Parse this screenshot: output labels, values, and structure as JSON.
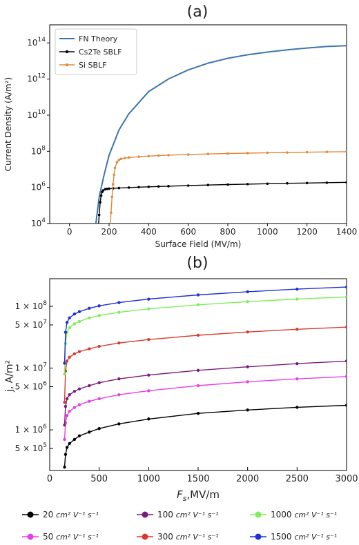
{
  "chart_data": [
    {
      "type": "line",
      "panel_label": "(a)",
      "xlabel": "Surface Field (MV/m)",
      "ylabel": "Current Density (A/m²)",
      "xlim": [
        -100,
        1400
      ],
      "ylim": [
        10000,
        1000000000000000
      ],
      "yscale": "log",
      "xticks": [
        0,
        200,
        400,
        600,
        800,
        1000,
        1200,
        1400
      ],
      "yticks": [
        {
          "value": 10000,
          "base": "10",
          "exp": "4"
        },
        {
          "value": 1000000,
          "base": "10",
          "exp": "6"
        },
        {
          "value": 100000000,
          "base": "10",
          "exp": "8"
        },
        {
          "value": 10000000000,
          "base": "10",
          "exp": "10"
        },
        {
          "value": 1000000000000,
          "base": "10",
          "exp": "12"
        },
        {
          "value": 100000000000000,
          "base": "10",
          "exp": "14"
        }
      ],
      "legend": "top-left",
      "grid": false,
      "series": [
        {
          "name": "FN Theory",
          "color": "#3a75b0",
          "marker": "none",
          "x": [
            130,
            150,
            175,
            200,
            250,
            300,
            400,
            500,
            600,
            700,
            800,
            900,
            1000,
            1100,
            1200,
            1300,
            1400
          ],
          "y": [
            5000,
            300000,
            5000000,
            60000000,
            1500000000,
            12000000000,
            200000000000,
            1000000000000,
            3200000000000,
            7500000000000,
            14000000000000,
            22000000000000,
            31000000000000,
            41000000000000,
            52000000000000,
            63000000000000,
            70000000000000
          ]
        },
        {
          "name": "Cs2Te SBLF",
          "color": "#000000",
          "marker": "circle",
          "x": [
            145,
            150,
            155,
            160,
            165,
            170,
            180,
            190,
            200,
            220,
            250,
            300,
            350,
            400,
            450,
            500,
            600,
            700,
            800,
            900,
            1000,
            1100,
            1200,
            1300,
            1400
          ],
          "y": [
            5000,
            30000,
            150000,
            350000,
            550000,
            680000,
            790000,
            830000,
            850000,
            880000,
            920000,
            980000,
            1030000,
            1080000,
            1120000,
            1170000,
            1260000,
            1350000,
            1440000,
            1520000,
            1600000,
            1680000,
            1750000,
            1820000,
            1900000
          ]
        },
        {
          "name": "Si SBLF",
          "color": "#e08a3c",
          "marker": "circle",
          "x": [
            205,
            210,
            215,
            220,
            225,
            230,
            240,
            250,
            260,
            280,
            300,
            350,
            400,
            450,
            500,
            600,
            700,
            800,
            900,
            1000,
            1100,
            1200,
            1300,
            1400
          ],
          "y": [
            5000,
            40000,
            300000,
            1500000,
            5000000,
            12000000,
            25000000,
            33000000,
            38000000,
            42000000,
            45000000,
            50000000,
            54000000,
            58000000,
            61000000,
            66000000,
            71000000,
            75000000,
            79000000,
            83000000,
            86000000,
            89000000,
            92000000,
            95000000
          ]
        }
      ]
    },
    {
      "type": "line",
      "panel_label": "(b)",
      "xlabel_main": "F",
      "xlabel_sub": "s",
      "xlabel_rest": ",MV/m",
      "ylabel": "j, A/m²",
      "xlim": [
        0,
        3000
      ],
      "ylim": [
        220000,
        280000000
      ],
      "yscale": "log",
      "xticks": [
        0,
        500,
        1000,
        1500,
        2000,
        2500,
        3000
      ],
      "yticks": [
        {
          "value": 500000,
          "label": "5 × 10",
          "exp": "5"
        },
        {
          "value": 1000000,
          "label": "1 × 10",
          "exp": "6"
        },
        {
          "value": 5000000,
          "label": "5 × 10",
          "exp": "6"
        },
        {
          "value": 10000000,
          "label": "1 × 10",
          "exp": "7"
        },
        {
          "value": 50000000,
          "label": "5 × 10",
          "exp": "7"
        },
        {
          "value": 100000000,
          "label": "1 × 10",
          "exp": "8"
        }
      ],
      "legend": "bottom",
      "legend_unit": "cm² V⁻¹ s⁻¹",
      "grid": false,
      "series": [
        {
          "name": "20",
          "color": "#000000",
          "x": [
            150,
            160,
            175,
            200,
            250,
            300,
            400,
            500,
            700,
            1000,
            1500,
            2000,
            2500,
            3000
          ],
          "y": [
            250000,
            400000,
            520000,
            600000,
            700000,
            800000,
            920000,
            1050000,
            1250000,
            1500000,
            1850000,
            2100000,
            2320000,
            2500000
          ]
        },
        {
          "name": "50",
          "color": "#e73ee7",
          "x": [
            150,
            160,
            175,
            200,
            250,
            300,
            400,
            500,
            700,
            1000,
            1500,
            2000,
            2500,
            3000
          ],
          "y": [
            700000,
            1300000,
            1700000,
            2000000,
            2300000,
            2550000,
            2900000,
            3200000,
            3700000,
            4300000,
            5200000,
            6000000,
            6700000,
            7300000
          ]
        },
        {
          "name": "100",
          "color": "#7a1a7a",
          "x": [
            150,
            160,
            175,
            200,
            250,
            300,
            400,
            500,
            700,
            1000,
            1500,
            2000,
            2500,
            3000
          ],
          "y": [
            1200000,
            2400000,
            3200000,
            3700000,
            4200000,
            4600000,
            5200000,
            5800000,
            6700000,
            7700000,
            9200000,
            10500000,
            11800000,
            13000000
          ]
        },
        {
          "name": "300",
          "color": "#d83a2f",
          "x": [
            150,
            160,
            175,
            200,
            250,
            300,
            400,
            500,
            700,
            1000,
            1500,
            2000,
            2500,
            3000
          ],
          "y": [
            2800000,
            9000000,
            13000000,
            15000000,
            17000000,
            18500000,
            20500000,
            22500000,
            25500000,
            29000000,
            34000000,
            38500000,
            42500000,
            46000000
          ]
        },
        {
          "name": "1000",
          "color": "#7ced5b",
          "x": [
            150,
            160,
            175,
            200,
            250,
            300,
            400,
            500,
            700,
            1000,
            1500,
            2000,
            2500,
            3000
          ],
          "y": [
            8000000,
            25000000,
            38000000,
            45000000,
            52000000,
            57000000,
            65000000,
            71000000,
            80000000,
            91000000,
            106000000,
            119000000,
            131000000,
            142000000
          ]
        },
        {
          "name": "1500",
          "color": "#1f2fd6",
          "x": [
            150,
            160,
            175,
            200,
            250,
            300,
            400,
            500,
            700,
            1000,
            1500,
            2000,
            2500,
            3000
          ],
          "y": [
            12000000,
            38000000,
            55000000,
            65000000,
            75000000,
            82000000,
            93000000,
            102000000,
            115000000,
            131000000,
            153000000,
            172000000,
            190000000,
            205000000
          ]
        }
      ]
    }
  ]
}
